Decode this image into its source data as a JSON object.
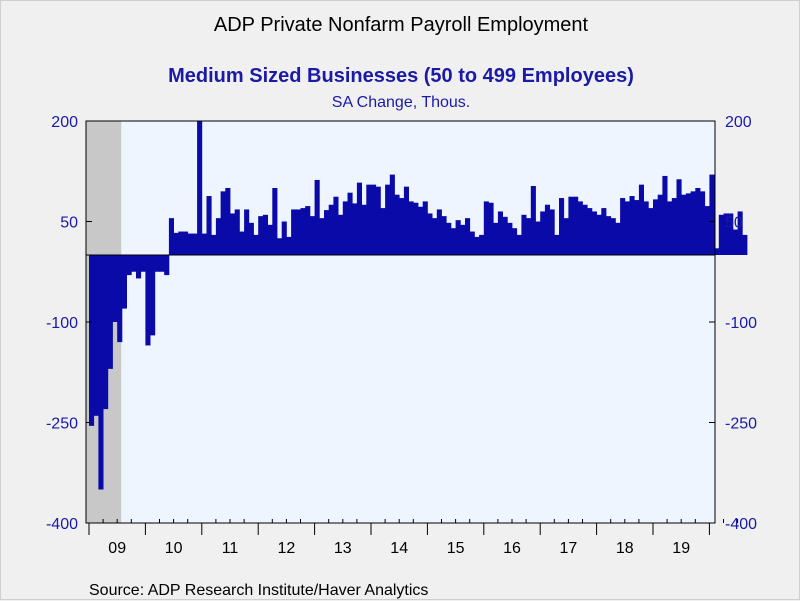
{
  "chart_data": {
    "type": "bar",
    "title": "ADP Private Nonfarm Payroll Employment",
    "subtitle": "Medium Sized Businesses (50 to 499 Employees)",
    "units": "SA Change, Thous.",
    "source": "Source:  ADP Research Institute/Haver Analytics",
    "ylim": [
      -400,
      200
    ],
    "yticks": [
      200,
      50,
      -100,
      -250,
      -400
    ],
    "year_labels": [
      "09",
      "10",
      "11",
      "12",
      "13",
      "14",
      "15",
      "16",
      "17",
      "18",
      "19"
    ],
    "recession_shading": {
      "start": "2009-01",
      "end": "2009-06"
    },
    "start_month": "2009-01",
    "values": [
      -255,
      -240,
      -350,
      -230,
      -170,
      -100,
      -130,
      -80,
      -30,
      -25,
      -35,
      -25,
      -135,
      -120,
      -25,
      -25,
      -30,
      55,
      33,
      35,
      35,
      32,
      32,
      200,
      32,
      88,
      30,
      55,
      95,
      100,
      62,
      68,
      35,
      68,
      48,
      30,
      58,
      60,
      45,
      100,
      25,
      50,
      27,
      68,
      68,
      70,
      73,
      58,
      112,
      55,
      67,
      75,
      87,
      60,
      80,
      93,
      77,
      108,
      75,
      105,
      105,
      102,
      70,
      105,
      120,
      90,
      85,
      102,
      80,
      78,
      72,
      80,
      62,
      55,
      68,
      58,
      48,
      40,
      52,
      45,
      55,
      35,
      27,
      30,
      80,
      78,
      48,
      65,
      57,
      48,
      40,
      30,
      60,
      55,
      103,
      50,
      65,
      75,
      68,
      30,
      85,
      55,
      87,
      87,
      80,
      75,
      70,
      65,
      60,
      70,
      58,
      55,
      48,
      85,
      80,
      88,
      82,
      105,
      80,
      70,
      83,
      90,
      118,
      80,
      85,
      113,
      90,
      92,
      95,
      100,
      95,
      73,
      120,
      10,
      60,
      62,
      62,
      38,
      65,
      30
    ]
  }
}
